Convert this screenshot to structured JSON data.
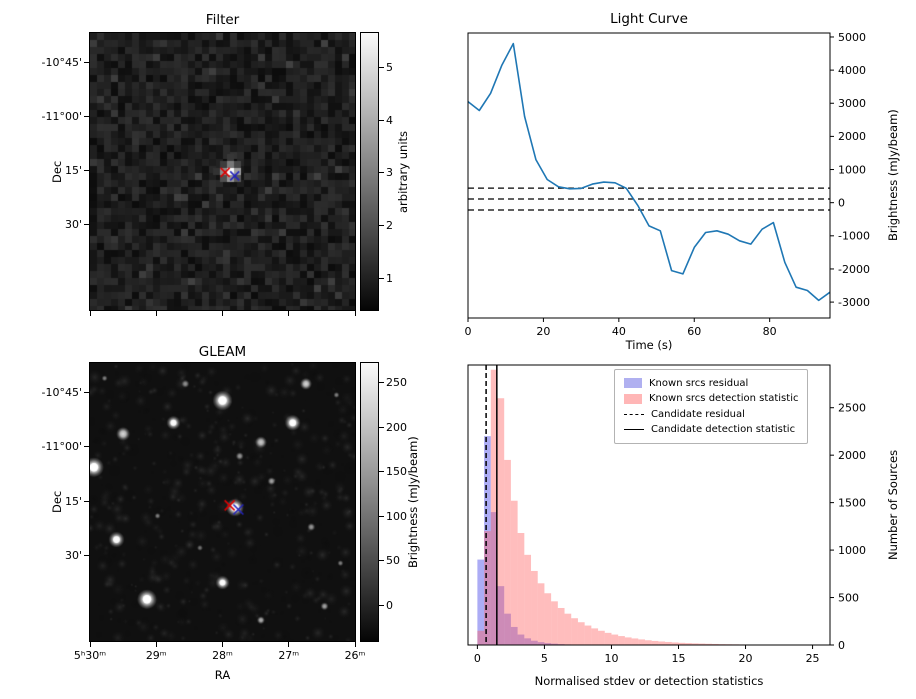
{
  "chart_data": [
    {
      "type": "heatmap",
      "name": "filter",
      "title": "Filter",
      "ylabel": "Dec",
      "colorbar_label": "arbitrary units",
      "colorbar_ticks": [
        "1",
        "2",
        "3",
        "4",
        "5"
      ],
      "colorbar_tick_values": [
        1,
        2,
        3,
        4,
        5
      ],
      "colorbar_range": [
        0.4,
        5.65
      ],
      "yticks": [
        {
          "label": "-10°45'",
          "f": 0.105
        },
        {
          "label": "-11°00'",
          "f": 0.3
        },
        {
          "label": "15'",
          "f": 0.497
        },
        {
          "label": "30'",
          "f": 0.693
        }
      ],
      "xticks": [
        {
          "label": "",
          "f": 0
        },
        {
          "label": "",
          "f": 0.25
        },
        {
          "label": "",
          "f": 0.5
        },
        {
          "label": "",
          "f": 0.75
        },
        {
          "label": "",
          "f": 1
        }
      ],
      "source": {
        "fx": 0.53,
        "fy": 0.5
      },
      "markers": [
        {
          "color": "#dd0000",
          "fx": 0.51,
          "fy": 0.503
        },
        {
          "color": "#2222bb",
          "fx": 0.546,
          "fy": 0.516
        }
      ]
    },
    {
      "type": "line",
      "name": "light_curve",
      "title": "Light Curve",
      "xlabel": "Time (s)",
      "ylabel": "Brightness (mJy/beam)",
      "x": [
        0,
        3,
        6,
        9,
        12,
        15,
        18,
        21,
        24,
        27,
        30,
        33,
        36,
        39,
        42,
        45,
        48,
        51,
        54,
        57,
        60,
        63,
        66,
        69,
        72,
        75,
        78,
        81,
        84,
        87,
        90,
        93,
        96
      ],
      "y": [
        3050,
        2780,
        3300,
        4150,
        4800,
        2600,
        1300,
        700,
        480,
        420,
        430,
        560,
        620,
        600,
        430,
        -80,
        -700,
        -850,
        -2050,
        -2150,
        -1350,
        -900,
        -850,
        -950,
        -1150,
        -1250,
        -800,
        -600,
        -1800,
        -2550,
        -2650,
        -2950,
        -2700
      ],
      "dashed_thresholds": [
        440,
        110,
        -220
      ],
      "xlim": [
        0,
        96
      ],
      "ylim": [
        -3480,
        5120
      ],
      "xticks": [
        0,
        20,
        40,
        60,
        80
      ],
      "yticks": [
        -3000,
        -2000,
        -1000,
        0,
        1000,
        2000,
        3000,
        4000,
        5000
      ],
      "line_color": "#1f77b4"
    },
    {
      "type": "heatmap",
      "name": "gleam",
      "title": "GLEAM",
      "xlabel": "RA",
      "ylabel": "Dec",
      "colorbar_label": "Brightness (mJy/beam)",
      "colorbar_ticks": [
        "0",
        "50",
        "100",
        "150",
        "200",
        "250"
      ],
      "colorbar_tick_values": [
        0,
        50,
        100,
        150,
        200,
        250
      ],
      "colorbar_range": [
        -40,
        272
      ],
      "yticks": [
        {
          "label": "-10°45'",
          "f": 0.105
        },
        {
          "label": "-11°00'",
          "f": 0.3
        },
        {
          "label": "15'",
          "f": 0.497
        },
        {
          "label": "30'",
          "f": 0.693
        }
      ],
      "xticks": [
        {
          "label": "5ʰ30ᵐ",
          "f": 0
        },
        {
          "label": "29ᵐ",
          "f": 0.25
        },
        {
          "label": "28ᵐ",
          "f": 0.5
        },
        {
          "label": "27ᵐ",
          "f": 0.75
        },
        {
          "label": "26ᵐ",
          "f": 1
        }
      ],
      "sources": [
        [
          0.5,
          0.135,
          10,
          1
        ],
        [
          0.815,
          0.075,
          6,
          0.85
        ],
        [
          0.315,
          0.215,
          7,
          0.9
        ],
        [
          0.125,
          0.255,
          7,
          0.85
        ],
        [
          0.765,
          0.215,
          8,
          0.95
        ],
        [
          0.645,
          0.285,
          6,
          0.8
        ],
        [
          0.015,
          0.375,
          10,
          1
        ],
        [
          0.565,
          0.335,
          4,
          0.6
        ],
        [
          0.685,
          0.425,
          4,
          0.65
        ],
        [
          0.547,
          0.52,
          9,
          1
        ],
        [
          0.1,
          0.635,
          8,
          0.9
        ],
        [
          0.835,
          0.59,
          4,
          0.6
        ],
        [
          0.255,
          0.55,
          3,
          0.5
        ],
        [
          0.5,
          0.79,
          7,
          0.9
        ],
        [
          0.215,
          0.85,
          10,
          1
        ],
        [
          0.645,
          0.925,
          4,
          0.7
        ],
        [
          0.885,
          0.875,
          4,
          0.65
        ],
        [
          0.93,
          0.115,
          3,
          0.5
        ],
        [
          0.415,
          0.665,
          3,
          0.45
        ],
        [
          0.055,
          0.055,
          3,
          0.5
        ],
        [
          0.945,
          0.72,
          3,
          0.5
        ],
        [
          0.36,
          0.075,
          4,
          0.55
        ]
      ],
      "markers": [
        {
          "color": "#dd0000",
          "fx": 0.527,
          "fy": 0.512
        },
        {
          "color": "#2222bb",
          "fx": 0.56,
          "fy": 0.527
        }
      ]
    },
    {
      "type": "bar",
      "name": "histograms",
      "xlabel": "Normalised stdev or detection statistics",
      "ylabel": "Number of Sources",
      "bin_start": 0,
      "bin_width": 0.5,
      "series": [
        {
          "name": "Known srcs residual",
          "color": "rgba(90,90,235,0.5)",
          "legend_color": "#b0b0f0",
          "values": [
            900,
            2200,
            1400,
            620,
            330,
            190,
            110,
            70,
            45,
            30,
            20,
            14,
            9,
            6,
            4,
            3,
            2,
            2,
            1,
            1,
            1,
            1,
            0,
            0,
            0,
            0,
            0,
            0,
            0,
            0,
            0,
            0,
            0,
            0,
            0,
            0,
            0,
            0,
            0,
            0,
            0,
            0,
            0,
            0,
            0,
            0,
            0,
            0,
            0,
            0,
            0,
            0
          ]
        },
        {
          "name": "Known srcs detection statistic",
          "color": "rgba(255,90,90,0.4)",
          "legend_color": "#ffb6b6",
          "values": [
            150,
            1200,
            2900,
            2600,
            1950,
            1520,
            1180,
            950,
            780,
            650,
            545,
            460,
            390,
            330,
            282,
            240,
            205,
            175,
            150,
            128,
            110,
            94,
            80,
            69,
            59,
            50,
            43,
            37,
            32,
            27,
            23,
            20,
            17,
            15,
            13,
            11,
            9,
            8,
            7,
            6,
            5,
            5,
            4,
            4,
            3,
            3,
            3,
            2,
            2,
            2,
            2,
            2
          ]
        }
      ],
      "vlines": [
        {
          "label": "Candidate residual",
          "style": "dashed",
          "x": 0.65
        },
        {
          "label": "Candidate detection statistic",
          "style": "solid",
          "x": 1.45
        }
      ],
      "xlim": [
        -0.7,
        26.3
      ],
      "ylim": [
        0,
        2950
      ],
      "xticks": [
        0,
        5,
        10,
        15,
        20,
        25
      ],
      "yticks": [
        0,
        500,
        1000,
        1500,
        2000,
        2500
      ],
      "legend_position": "upper right"
    }
  ]
}
